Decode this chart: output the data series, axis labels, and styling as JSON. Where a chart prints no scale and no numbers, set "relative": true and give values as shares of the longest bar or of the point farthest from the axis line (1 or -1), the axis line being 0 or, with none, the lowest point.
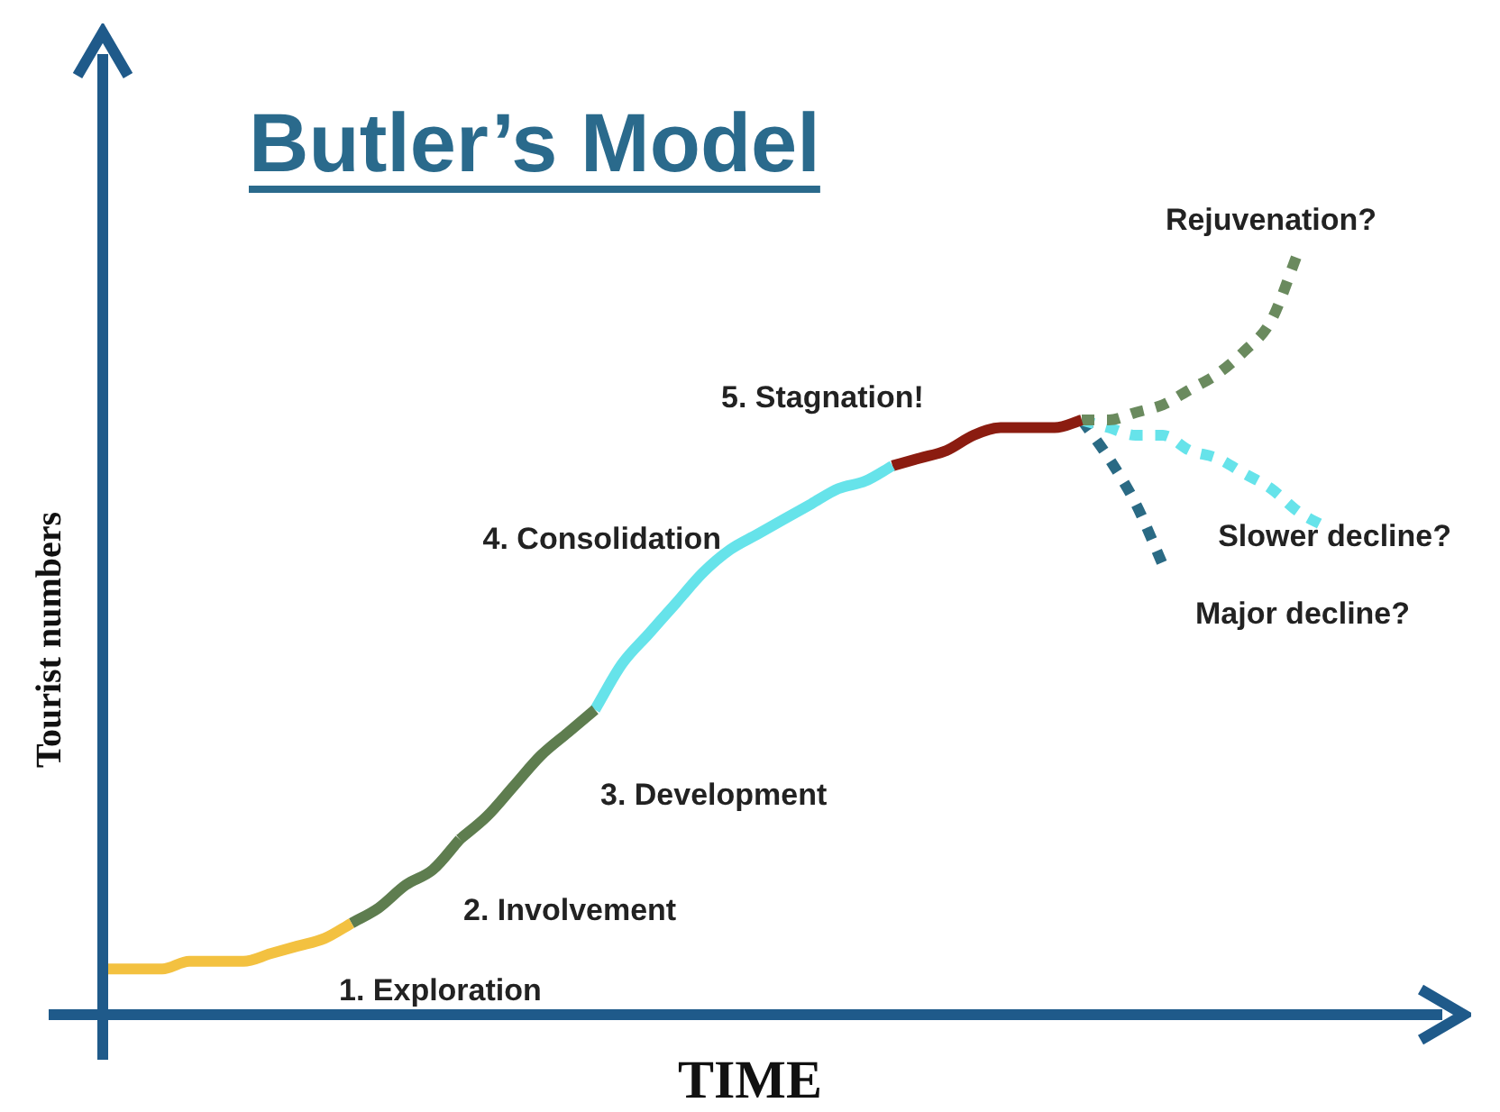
{
  "chart_data": {
    "type": "line",
    "title": "Butler’s Model",
    "xlabel": "TIME",
    "ylabel": "Tourist numbers",
    "relative": true,
    "legend": false,
    "grid": false,
    "marker": "none",
    "categories": [
      null,
      null,
      null,
      null,
      null,
      null,
      null,
      null,
      null,
      null,
      null,
      null,
      null,
      null,
      null,
      null,
      null,
      null,
      null,
      null,
      null,
      null,
      null,
      null,
      null,
      null,
      null,
      null,
      null,
      null,
      null,
      null,
      null,
      null,
      null,
      null,
      null,
      null,
      null,
      null,
      null,
      null,
      null,
      null,
      null,
      null
    ],
    "series": [
      {
        "name": "1. Exploration",
        "color": "#f3c140",
        "line_style": "solid",
        "values": [
          0.06,
          0.06,
          0.06,
          0.07,
          0.07,
          0.07,
          0.08,
          0.09,
          0.1,
          0.12,
          null,
          null,
          null,
          null,
          null,
          null,
          null,
          null,
          null,
          null,
          null,
          null,
          null,
          null,
          null,
          null,
          null,
          null,
          null,
          null,
          null,
          null,
          null,
          null,
          null,
          null,
          null,
          null,
          null,
          null,
          null,
          null,
          null,
          null,
          null,
          null
        ]
      },
      {
        "name": "2. Involvement",
        "color": "#5e7d4f",
        "line_style": "solid",
        "values": [
          null,
          null,
          null,
          null,
          null,
          null,
          null,
          null,
          null,
          0.12,
          0.14,
          0.17,
          0.19,
          0.23,
          null,
          null,
          null,
          null,
          null,
          null,
          null,
          null,
          null,
          null,
          null,
          null,
          null,
          null,
          null,
          null,
          null,
          null,
          null,
          null,
          null,
          null,
          null,
          null,
          null,
          null,
          null,
          null,
          null,
          null,
          null,
          null
        ]
      },
      {
        "name": "3. Development",
        "color": "#5e7d4f",
        "line_style": "solid",
        "values": [
          null,
          null,
          null,
          null,
          null,
          null,
          null,
          null,
          null,
          null,
          null,
          null,
          null,
          0.23,
          0.26,
          0.3,
          0.34,
          0.37,
          0.4,
          null,
          null,
          null,
          null,
          null,
          null,
          null,
          null,
          null,
          null,
          null,
          null,
          null,
          null,
          null,
          null,
          null,
          null,
          null,
          null,
          null,
          null,
          null,
          null,
          null,
          null,
          null
        ]
      },
      {
        "name": "4. Consolidation",
        "color": "#66e3ea",
        "line_style": "solid",
        "values": [
          null,
          null,
          null,
          null,
          null,
          null,
          null,
          null,
          null,
          null,
          null,
          null,
          null,
          null,
          null,
          null,
          null,
          null,
          0.4,
          0.46,
          0.5,
          0.54,
          0.58,
          0.61,
          0.63,
          0.65,
          0.67,
          0.69,
          0.7,
          0.72,
          null,
          null,
          null,
          null,
          null,
          null,
          null,
          null,
          null,
          null,
          null,
          null,
          null,
          null,
          null,
          null
        ]
      },
      {
        "name": "5. Stagnation!",
        "color": "#8b1c10",
        "line_style": "solid",
        "values": [
          null,
          null,
          null,
          null,
          null,
          null,
          null,
          null,
          null,
          null,
          null,
          null,
          null,
          null,
          null,
          null,
          null,
          null,
          null,
          null,
          null,
          null,
          null,
          null,
          null,
          null,
          null,
          null,
          null,
          0.72,
          0.73,
          0.74,
          0.76,
          0.77,
          0.77,
          0.77,
          0.78,
          null,
          null,
          null,
          null,
          null,
          null,
          null,
          null,
          null
        ]
      },
      {
        "name": "Rejuvenation?",
        "color": "#6a8a5e",
        "line_style": "dotted",
        "values": [
          null,
          null,
          null,
          null,
          null,
          null,
          null,
          null,
          null,
          null,
          null,
          null,
          null,
          null,
          null,
          null,
          null,
          null,
          null,
          null,
          null,
          null,
          null,
          null,
          null,
          null,
          null,
          null,
          null,
          null,
          null,
          null,
          null,
          null,
          null,
          null,
          0.78,
          0.78,
          0.79,
          0.8,
          0.82,
          0.84,
          0.87,
          0.91,
          1,
          null
        ]
      },
      {
        "name": "Slower decline?",
        "color": "#66e3ea",
        "line_style": "dotted",
        "values": [
          null,
          null,
          null,
          null,
          null,
          null,
          null,
          null,
          null,
          null,
          null,
          null,
          null,
          null,
          null,
          null,
          null,
          null,
          null,
          null,
          null,
          null,
          null,
          null,
          null,
          null,
          null,
          null,
          null,
          null,
          null,
          null,
          null,
          null,
          null,
          null,
          0.78,
          0.77,
          0.76,
          0.76,
          0.74,
          0.73,
          0.71,
          0.69,
          0.66,
          0.64
        ]
      },
      {
        "name": "Major decline?",
        "color": "#2a6a84",
        "line_style": "dotted",
        "values": [
          null,
          null,
          null,
          null,
          null,
          null,
          null,
          null,
          null,
          null,
          null,
          null,
          null,
          null,
          null,
          null,
          null,
          null,
          null,
          null,
          null,
          null,
          null,
          null,
          null,
          null,
          null,
          null,
          null,
          null,
          null,
          null,
          null,
          null,
          null,
          null,
          0.78,
          0.73,
          0.67,
          0.59,
          null,
          null,
          null,
          null,
          null,
          null
        ]
      }
    ]
  }
}
